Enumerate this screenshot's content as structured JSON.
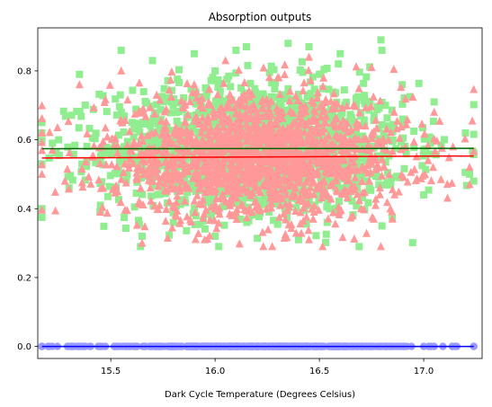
{
  "chart_data": {
    "type": "scatter",
    "title": "Absorption outputs",
    "xlabel": "Dark Cycle Temperature (Degrees Celsius)",
    "ylabel": "",
    "xlim": [
      15.15,
      17.28
    ],
    "ylim": [
      -0.035,
      0.925
    ],
    "xticks": [
      15.5,
      16.0,
      16.5,
      17.0
    ],
    "xtick_labels": [
      "15.5",
      "16.0",
      "16.5",
      "17.0"
    ],
    "yticks": [
      0.0,
      0.2,
      0.4,
      0.6,
      0.8
    ],
    "ytick_labels": [
      "0.0",
      "0.2",
      "0.4",
      "0.6",
      "0.8"
    ],
    "grid": false,
    "legend": "none",
    "series": [
      {
        "marker": "square",
        "color": "#90ee90",
        "center": [
          16.2,
          0.575
        ],
        "spread": [
          0.36,
          0.095
        ],
        "x_range": [
          15.17,
          17.24
        ],
        "points": [
          [
            15.17,
            0.65
          ],
          [
            15.17,
            0.53
          ],
          [
            15.22,
            0.59
          ],
          [
            15.3,
            0.46
          ],
          [
            15.35,
            0.79
          ],
          [
            15.55,
            0.86
          ],
          [
            15.7,
            0.83
          ],
          [
            15.9,
            0.85
          ],
          [
            16.1,
            0.86
          ],
          [
            16.15,
            0.87
          ],
          [
            16.35,
            0.88
          ],
          [
            16.45,
            0.87
          ],
          [
            16.6,
            0.85
          ],
          [
            16.8,
            0.86
          ],
          [
            17.05,
            0.71
          ],
          [
            17.2,
            0.62
          ],
          [
            17.24,
            0.48
          ],
          [
            17.22,
            0.5
          ],
          [
            16.8,
            0.35
          ],
          [
            16.4,
            0.31
          ],
          [
            16.0,
            0.32
          ],
          [
            15.65,
            0.32
          ],
          [
            15.45,
            0.41
          ],
          [
            15.25,
            0.6
          ],
          [
            15.55,
            0.68
          ],
          [
            16.0,
            0.8
          ],
          [
            16.5,
            0.79
          ],
          [
            16.9,
            0.66
          ],
          [
            17.0,
            0.44
          ],
          [
            15.8,
            0.36
          ],
          [
            16.3,
            0.36
          ]
        ]
      },
      {
        "marker": "triangle",
        "color": "#ff9999",
        "center": [
          16.2,
          0.55
        ],
        "spread": [
          0.36,
          0.09
        ],
        "x_range": [
          15.17,
          17.24
        ],
        "points": [
          [
            15.17,
            0.62
          ],
          [
            15.17,
            0.5
          ],
          [
            15.22,
            0.57
          ],
          [
            15.35,
            0.76
          ],
          [
            15.55,
            0.8
          ],
          [
            16.05,
            0.83
          ],
          [
            16.45,
            0.84
          ],
          [
            16.75,
            0.81
          ],
          [
            17.05,
            0.68
          ],
          [
            17.22,
            0.52
          ],
          [
            17.22,
            0.47
          ],
          [
            16.85,
            0.37
          ],
          [
            16.45,
            0.31
          ],
          [
            15.95,
            0.31
          ],
          [
            15.65,
            0.3
          ],
          [
            15.45,
            0.39
          ],
          [
            15.28,
            0.48
          ],
          [
            16.7,
            0.4
          ],
          [
            15.9,
            0.76
          ],
          [
            16.3,
            0.78
          ]
        ]
      },
      {
        "marker": "circle",
        "color": "#9999ff",
        "y": 0.0,
        "x_range": [
          15.17,
          17.24
        ],
        "points": [
          [
            15.17,
            0.0
          ],
          [
            15.22,
            0.0
          ],
          [
            15.3,
            0.0
          ],
          [
            15.35,
            0.0
          ],
          [
            17.0,
            0.0
          ],
          [
            17.05,
            0.0
          ],
          [
            17.15,
            0.0
          ],
          [
            17.24,
            0.0
          ]
        ]
      }
    ],
    "lines": [
      {
        "color": "#006400",
        "x": [
          15.17,
          17.24
        ],
        "y": [
          0.574,
          0.575
        ]
      },
      {
        "color": "#ff0000",
        "x": [
          15.17,
          17.24
        ],
        "y": [
          0.547,
          0.553
        ]
      },
      {
        "color": "#0000ff",
        "x": [
          15.17,
          17.24
        ],
        "y": [
          0.0,
          0.0
        ]
      }
    ]
  }
}
